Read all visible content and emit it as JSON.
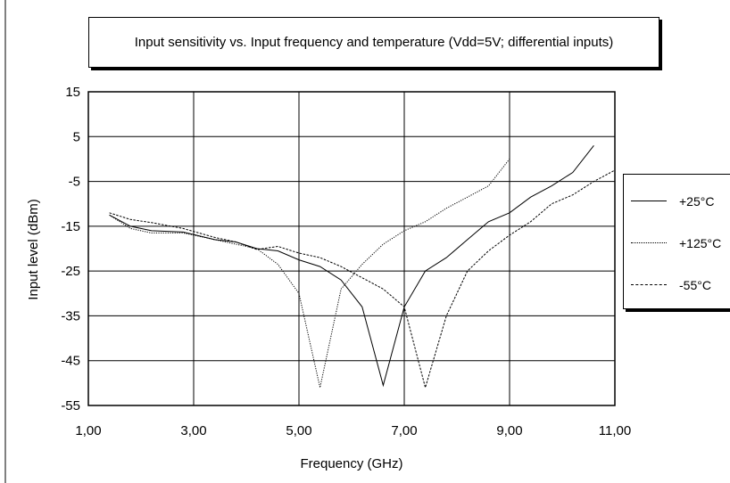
{
  "chart_data": {
    "type": "line",
    "title": "Input sensitivity vs. Input frequency and temperature (Vdd=5V; differential inputs)",
    "xlabel": "Frequency (GHz)",
    "ylabel": "Input level (dBm)",
    "xlim": [
      1,
      11
    ],
    "ylim": [
      -55,
      15
    ],
    "x_ticks": [
      "1,00",
      "3,00",
      "5,00",
      "7,00",
      "9,00",
      "11,00"
    ],
    "y_ticks": [
      "15",
      "5",
      "-5",
      "-15",
      "-25",
      "-35",
      "-45",
      "-55"
    ],
    "grid": true,
    "legend_position": "right",
    "series": [
      {
        "name": "+25°C",
        "color": "#000000",
        "style": "solid",
        "points": [
          [
            1.4,
            -12.5
          ],
          [
            1.8,
            -15
          ],
          [
            2.2,
            -16
          ],
          [
            2.8,
            -16.3
          ],
          [
            3.4,
            -18
          ],
          [
            3.8,
            -18.5
          ],
          [
            4.2,
            -20
          ],
          [
            4.6,
            -20.5
          ],
          [
            5.0,
            -22.5
          ],
          [
            5.4,
            -24
          ],
          [
            5.8,
            -27
          ],
          [
            6.2,
            -33
          ],
          [
            6.6,
            -50.5
          ],
          [
            7.0,
            -33
          ],
          [
            7.4,
            -25
          ],
          [
            7.8,
            -22
          ],
          [
            8.2,
            -18
          ],
          [
            8.6,
            -14
          ],
          [
            9.0,
            -12
          ],
          [
            9.4,
            -8.5
          ],
          [
            9.8,
            -6
          ],
          [
            10.2,
            -3
          ],
          [
            10.6,
            3
          ]
        ]
      },
      {
        "name": "+125°C",
        "color": "#000000",
        "style": "dotted",
        "points": [
          [
            1.4,
            -12.5
          ],
          [
            1.8,
            -15.5
          ],
          [
            2.2,
            -16.5
          ],
          [
            2.8,
            -16.5
          ],
          [
            3.4,
            -18
          ],
          [
            3.8,
            -19
          ],
          [
            4.2,
            -20
          ],
          [
            4.6,
            -23.5
          ],
          [
            5.0,
            -30
          ],
          [
            5.4,
            -51
          ],
          [
            5.8,
            -29
          ],
          [
            6.2,
            -23.5
          ],
          [
            6.6,
            -19
          ],
          [
            7.0,
            -16
          ],
          [
            7.4,
            -14
          ],
          [
            7.8,
            -11
          ],
          [
            8.2,
            -8.5
          ],
          [
            8.6,
            -6
          ],
          [
            9.0,
            0
          ]
        ]
      },
      {
        "name": "-55°C",
        "color": "#000000",
        "style": "dashed",
        "points": [
          [
            1.4,
            -12
          ],
          [
            1.8,
            -13.5
          ],
          [
            2.2,
            -14.2
          ],
          [
            2.8,
            -15.5
          ],
          [
            3.4,
            -17.5
          ],
          [
            3.8,
            -18.5
          ],
          [
            4.2,
            -20.2
          ],
          [
            4.6,
            -19.5
          ],
          [
            5.0,
            -21
          ],
          [
            5.4,
            -22
          ],
          [
            5.8,
            -24
          ],
          [
            6.2,
            -26.5
          ],
          [
            6.6,
            -29
          ],
          [
            7.0,
            -33
          ],
          [
            7.4,
            -51
          ],
          [
            7.8,
            -35
          ],
          [
            8.2,
            -25
          ],
          [
            8.6,
            -20.5
          ],
          [
            9.0,
            -17
          ],
          [
            9.4,
            -14
          ],
          [
            9.8,
            -10
          ],
          [
            10.2,
            -8
          ],
          [
            10.6,
            -5
          ],
          [
            11.0,
            -2.5
          ]
        ]
      }
    ]
  }
}
